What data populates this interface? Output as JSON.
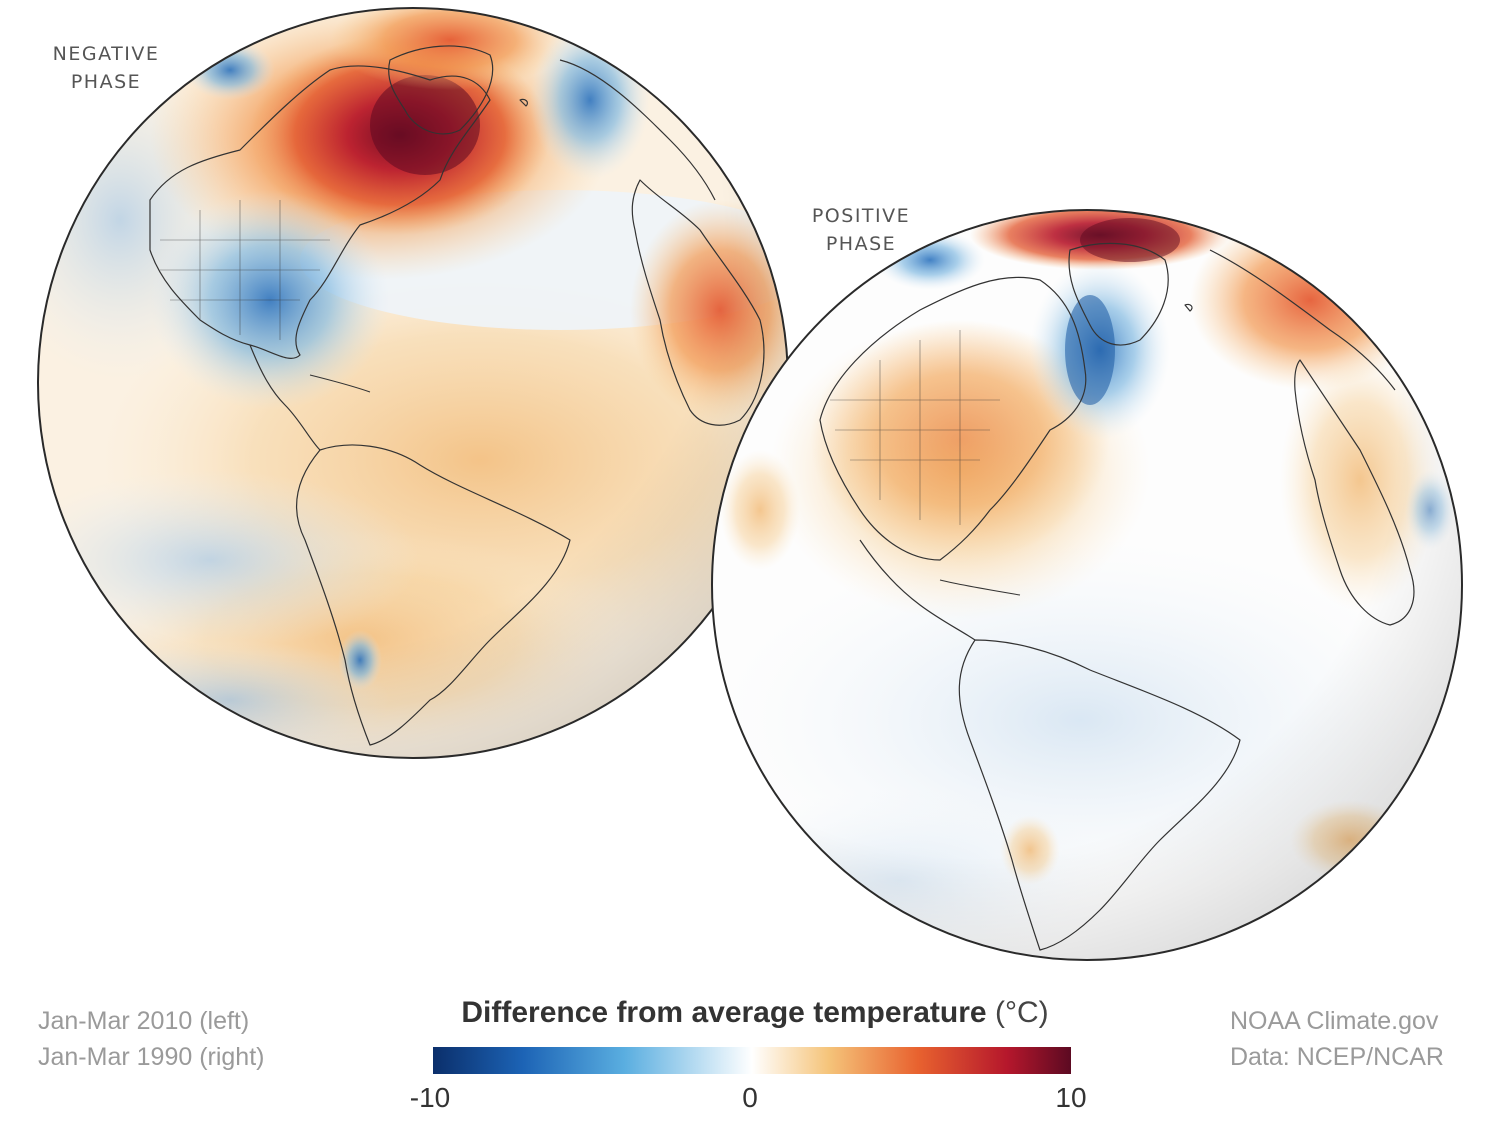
{
  "globes": [
    {
      "label_line1": "NEGATIVE",
      "label_line2": "PHASE",
      "period": "Jan-Mar 2010 (left)"
    },
    {
      "label_line1": "POSITIVE",
      "label_line2": "PHASE",
      "period": "Jan-Mar 1990 (right)"
    }
  ],
  "legend": {
    "title": "Difference from average temperature",
    "unit": "(°C)",
    "min": "-10",
    "mid": "0",
    "max": "10",
    "colors": [
      "#0b2f6b",
      "#1c63b5",
      "#5aaee0",
      "#ffffff",
      "#f5c47a",
      "#e8622f",
      "#b5172c",
      "#5c0a22"
    ]
  },
  "credits": {
    "source": "NOAA Climate.gov",
    "data": "Data: NCEP/NCAR"
  }
}
